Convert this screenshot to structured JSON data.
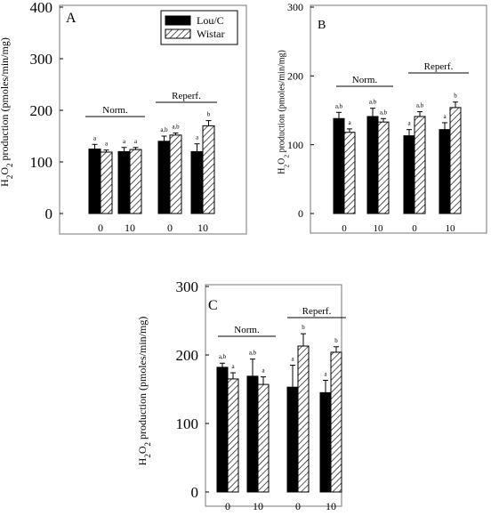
{
  "chart_data": [
    {
      "type": "bar",
      "panel_label": "A",
      "ylabel": "H2O2 production (pmoles/min/mg)",
      "ylabel_parts": [
        "H",
        "2",
        "O",
        "2",
        " production (pmoles/min/mg)"
      ],
      "ylim": [
        0,
        400
      ],
      "yticks": [
        "0",
        "100",
        "200",
        "300",
        "400"
      ],
      "categories": [
        "0",
        "10",
        "0",
        "10"
      ],
      "groups": [
        {
          "label": "Norm.",
          "categories": [
            0,
            1
          ]
        },
        {
          "label": "Reperf.",
          "categories": [
            2,
            3
          ]
        }
      ],
      "series": [
        {
          "name": "Lou/C",
          "fill": "solid",
          "values": [
            125,
            120,
            140,
            120
          ],
          "errors": [
            9,
            8,
            10,
            15
          ],
          "letters": [
            "a",
            "a",
            "a,b",
            "a"
          ]
        },
        {
          "name": "Wistar",
          "fill": "hatched",
          "values": [
            119,
            124,
            152,
            170
          ],
          "errors": [
            4,
            4,
            4,
            10
          ],
          "letters": [
            "a",
            "a",
            "a,b",
            "b"
          ]
        }
      ],
      "legend": "top-right"
    },
    {
      "type": "bar",
      "panel_label": "B",
      "ylabel": "H2O2 production (pmoles/min/mg)",
      "ylabel_parts": [
        "H",
        "2",
        "O",
        "2",
        " production (pmoles/min/mg)"
      ],
      "ylim": [
        0,
        300
      ],
      "yticks": [
        "0",
        "100",
        "200",
        "300"
      ],
      "categories": [
        "0",
        "10",
        "0",
        "10"
      ],
      "groups": [
        {
          "label": "Norm.",
          "categories": [
            0,
            1
          ]
        },
        {
          "label": "Reperf.",
          "categories": [
            2,
            3
          ]
        }
      ],
      "series": [
        {
          "name": "Lou/C",
          "fill": "solid",
          "values": [
            138,
            141,
            113,
            122
          ],
          "errors": [
            9,
            12,
            9,
            10
          ],
          "letters": [
            "a,b",
            "a,b",
            "a",
            "a"
          ]
        },
        {
          "name": "Wistar",
          "fill": "hatched",
          "values": [
            118,
            133,
            141,
            154
          ],
          "errors": [
            5,
            5,
            7,
            8
          ],
          "letters": [
            "a",
            "a,b",
            "a,b",
            "b"
          ]
        }
      ]
    },
    {
      "type": "bar",
      "panel_label": "C",
      "ylabel": "H2O2 production (pmoles/min/mg)",
      "ylabel_parts": [
        "H",
        "2",
        "O",
        "2",
        " production (pmoles/min/mg)"
      ],
      "ylim": [
        0,
        300
      ],
      "yticks": [
        "0",
        "100",
        "200",
        "300"
      ],
      "categories": [
        "0",
        "10",
        "0",
        "10"
      ],
      "groups": [
        {
          "label": "Norm.",
          "categories": [
            0,
            1
          ]
        },
        {
          "label": "Reperf.",
          "categories": [
            2,
            3
          ]
        }
      ],
      "series": [
        {
          "name": "Lou/C",
          "fill": "solid",
          "values": [
            182,
            169,
            153,
            145
          ],
          "errors": [
            6,
            25,
            32,
            18
          ],
          "letters": [
            "a,b",
            "a,b",
            "a",
            "a"
          ]
        },
        {
          "name": "Wistar",
          "fill": "hatched",
          "values": [
            165,
            157,
            213,
            204
          ],
          "errors": [
            9,
            11,
            18,
            8
          ],
          "letters": [
            "a",
            "a",
            "b",
            "b"
          ]
        }
      ]
    }
  ]
}
